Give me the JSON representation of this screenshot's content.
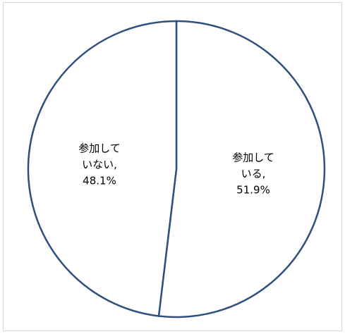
{
  "chart_data": {
    "type": "pie",
    "categories": [
      "参加している",
      "参加していない"
    ],
    "values": [
      51.9,
      48.1
    ],
    "unit": "%",
    "data_labels": [
      [
        "参加して",
        "いる,",
        "51.9%"
      ],
      [
        "参加して",
        "いない,",
        "48.1%"
      ]
    ],
    "start_angle_deg": 0,
    "direction": "clockwise",
    "legend": "none",
    "slice_fill": "#ffffff",
    "slice_stroke": "#2f4f7f"
  }
}
